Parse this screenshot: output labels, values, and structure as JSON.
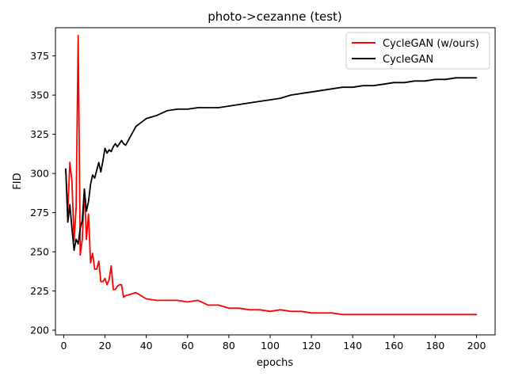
{
  "chart_data": {
    "type": "line",
    "title": "photo->cezanne (test)",
    "xlabel": "epochs",
    "ylabel": "FID",
    "xlim": [
      -4,
      209
    ],
    "ylim": [
      197,
      393
    ],
    "xticks": [
      0,
      20,
      40,
      60,
      80,
      100,
      120,
      140,
      160,
      180,
      200
    ],
    "yticks": [
      200,
      225,
      250,
      275,
      300,
      325,
      350,
      375
    ],
    "grid": false,
    "legend_position": "top-right",
    "series": [
      {
        "name": "CycleGAN (w/ours)",
        "color": "#ff0000",
        "x": [
          1,
          2,
          3,
          4,
          5,
          6,
          7,
          8,
          9,
          10,
          11,
          12,
          13,
          14,
          15,
          16,
          17,
          18,
          19,
          20,
          21,
          22,
          23,
          24,
          25,
          26,
          27,
          28,
          29,
          30,
          35,
          40,
          45,
          50,
          55,
          60,
          65,
          70,
          75,
          80,
          85,
          90,
          95,
          100,
          105,
          110,
          115,
          120,
          125,
          130,
          135,
          140,
          145,
          150,
          155,
          160,
          165,
          170,
          175,
          180,
          185,
          190,
          195,
          200
        ],
        "values": [
          302,
          276,
          307,
          295,
          257,
          278,
          388,
          248,
          258,
          290,
          258,
          274,
          243,
          249,
          239,
          239,
          244,
          231,
          231,
          233,
          229,
          232,
          241,
          226,
          226,
          228,
          229,
          229,
          221,
          222,
          224,
          220,
          219,
          219,
          219,
          218,
          219,
          216,
          216,
          214,
          214,
          213,
          213,
          212,
          213,
          212,
          212,
          211,
          211,
          211,
          210,
          210,
          210,
          210,
          210,
          210,
          210,
          210,
          210,
          210,
          210,
          210,
          210,
          210
        ]
      },
      {
        "name": "CycleGAN",
        "color": "#000000",
        "x": [
          1,
          2,
          3,
          4,
          5,
          6,
          7,
          8,
          9,
          10,
          11,
          12,
          13,
          14,
          15,
          16,
          17,
          18,
          19,
          20,
          21,
          22,
          23,
          24,
          25,
          26,
          27,
          28,
          29,
          30,
          35,
          40,
          45,
          50,
          55,
          60,
          65,
          70,
          75,
          80,
          85,
          90,
          95,
          100,
          105,
          110,
          115,
          120,
          125,
          130,
          135,
          140,
          145,
          150,
          155,
          160,
          165,
          170,
          175,
          180,
          185,
          190,
          195,
          200
        ],
        "values": [
          303,
          269,
          280,
          265,
          251,
          258,
          255,
          265,
          270,
          290,
          276,
          282,
          293,
          299,
          297,
          302,
          307,
          301,
          308,
          316,
          313,
          315,
          314,
          317,
          319,
          317,
          319,
          321,
          319,
          318,
          330,
          335,
          337,
          340,
          341,
          341,
          342,
          342,
          342,
          343,
          344,
          345,
          346,
          347,
          348,
          350,
          351,
          352,
          353,
          354,
          355,
          355,
          356,
          356,
          357,
          358,
          358,
          359,
          359,
          360,
          360,
          361,
          361,
          361
        ]
      }
    ]
  }
}
